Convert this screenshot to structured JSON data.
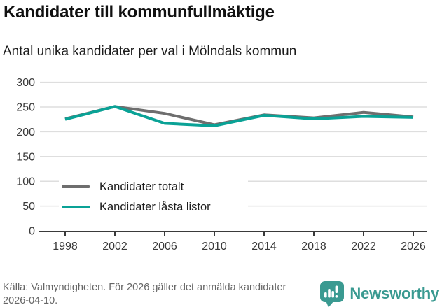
{
  "header": {
    "title": "Kandidater till kommunfullmäktige",
    "subtitle": "Antal unika kandidater per val i Mölndals kommun"
  },
  "chart_data": {
    "type": "line",
    "x": [
      1998,
      2002,
      2006,
      2010,
      2014,
      2018,
      2022,
      2026
    ],
    "series": [
      {
        "name": "Kandidater totalt",
        "color": "#6e6e6e",
        "values": [
          226,
          251,
          237,
          214,
          234,
          228,
          239,
          230
        ]
      },
      {
        "name": "Kandidater låsta listor",
        "color": "#0aa296",
        "values": [
          225,
          251,
          217,
          212,
          233,
          226,
          231,
          229
        ]
      }
    ],
    "title": "Kandidater till kommunfullmäktige",
    "subtitle": "Antal unika kandidater per val i Mölndals kommun",
    "xlabel": "",
    "ylabel": "",
    "ylim": [
      0,
      300
    ],
    "yticks": [
      0,
      50,
      100,
      150,
      200,
      250,
      300
    ],
    "grid": true,
    "legend_position": "inside-bottom-left"
  },
  "footer": {
    "source": "Källa: Valmyndigheten. För 2026 gäller det anmälda kandidater 2026-04-10.",
    "brand": {
      "name": "Newsworthy",
      "color": "#3a9a91"
    }
  },
  "style": {
    "axis_color": "#3a3a3a",
    "grid_color": "#dedede",
    "tick_label_color": "#3a3a3a"
  }
}
